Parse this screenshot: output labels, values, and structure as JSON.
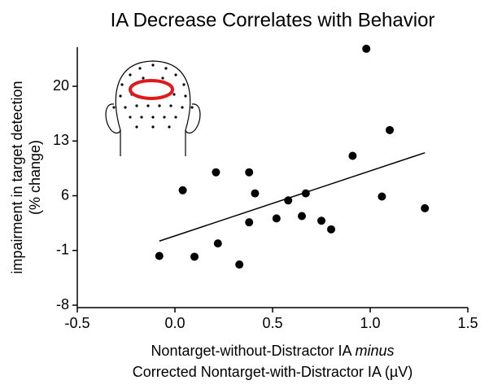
{
  "chart_data": {
    "type": "scatter",
    "title": "IA Decrease Correlates with Behavior",
    "ylabel": [
      "impairment in target detection",
      "(% change)"
    ],
    "xlabel": [
      "Nontarget-without-Distractor IA",
      "minus",
      "Corrected Nontarget-with-Distractor IA (µV)"
    ],
    "x": [
      -0.08,
      0.04,
      0.1,
      0.21,
      0.22,
      0.33,
      0.38,
      0.38,
      0.41,
      0.52,
      0.58,
      0.65,
      0.67,
      0.75,
      0.8,
      0.91,
      0.98,
      1.06,
      1.1,
      1.28
    ],
    "values": [
      -1.7,
      6.7,
      -1.8,
      9.0,
      -0.1,
      -2.8,
      9.0,
      2.6,
      6.3,
      3.1,
      5.4,
      3.4,
      6.3,
      2.8,
      1.7,
      11.1,
      24.8,
      5.9,
      14.4,
      4.4
    ],
    "color": "#000000",
    "fit": {
      "x": [
        -0.08,
        1.28
      ],
      "y": [
        0.2,
        11.5
      ],
      "color": "#000000"
    },
    "xlim": [
      -0.5,
      1.5
    ],
    "xticks": [
      -0.5,
      {
        "value": 0,
        "label": "0.0"
      },
      0.5,
      {
        "value": 1,
        "label": "1.0"
      },
      1.5
    ],
    "ylim": [
      -8,
      25
    ],
    "yticks": [
      -8,
      -1,
      6,
      13,
      20
    ]
  }
}
